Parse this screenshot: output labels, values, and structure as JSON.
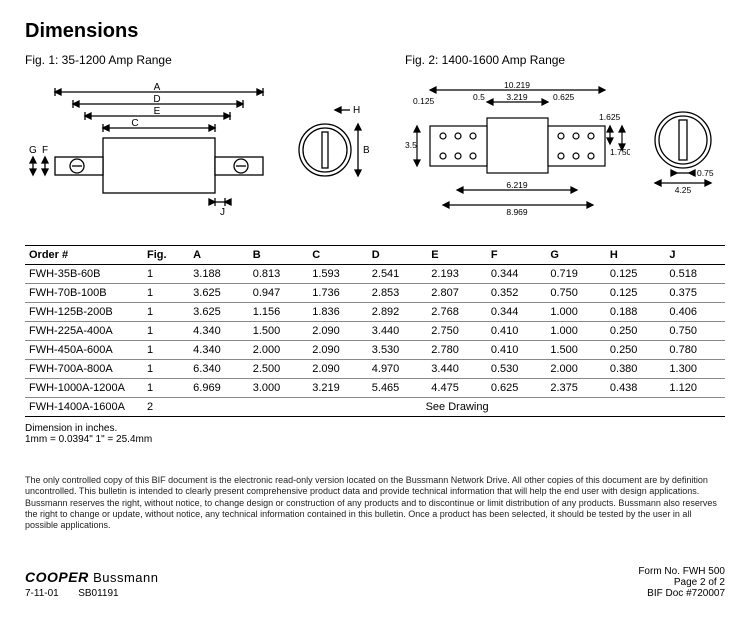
{
  "title": "Dimensions",
  "fig1_caption": "Fig. 1: 35-1200 Amp Range",
  "fig2_caption": "Fig. 2: 1400-1600 Amp Range",
  "fig1_labels": {
    "A": "A",
    "B": "B",
    "C": "C",
    "D": "D",
    "E": "E",
    "F": "F",
    "G": "G",
    "H": "H",
    "J": "J"
  },
  "fig2_labels": {
    "w_total": "10.219",
    "w_center": "3.219",
    "w_pad": "0.5",
    "w_edge": "0.125",
    "w_gap": "0.625",
    "h": "3.5",
    "tab_h": "1.625",
    "tab_h2": "1.750",
    "bot1": "6.219",
    "bot2": "8.969",
    "circ_w": "4.25",
    "circ_slot": "0.75"
  },
  "table": {
    "headers": [
      "Order #",
      "Fig.",
      "A",
      "B",
      "C",
      "D",
      "E",
      "F",
      "G",
      "H",
      "J"
    ],
    "rows": [
      [
        "FWH-35B-60B",
        "1",
        "3.188",
        "0.813",
        "1.593",
        "2.541",
        "2.193",
        "0.344",
        "0.719",
        "0.125",
        "0.518"
      ],
      [
        "FWH-70B-100B",
        "1",
        "3.625",
        "0.947",
        "1.736",
        "2.853",
        "2.807",
        "0.352",
        "0.750",
        "0.125",
        "0.375"
      ],
      [
        "FWH-125B-200B",
        "1",
        "3.625",
        "1.156",
        "1.836",
        "2.892",
        "2.768",
        "0.344",
        "1.000",
        "0.188",
        "0.406"
      ],
      [
        "FWH-225A-400A",
        "1",
        "4.340",
        "1.500",
        "2.090",
        "3.440",
        "2.750",
        "0.410",
        "1.000",
        "0.250",
        "0.750"
      ],
      [
        "FWH-450A-600A",
        "1",
        "4.340",
        "2.000",
        "2.090",
        "3.530",
        "2.780",
        "0.410",
        "1.500",
        "0.250",
        "0.780"
      ],
      [
        "FWH-700A-800A",
        "1",
        "6.340",
        "2.500",
        "2.090",
        "4.970",
        "3.440",
        "0.530",
        "2.000",
        "0.380",
        "1.300"
      ],
      [
        "FWH-1000A-1200A",
        "1",
        "6.969",
        "3.000",
        "3.219",
        "5.465",
        "4.475",
        "0.625",
        "2.375",
        "0.438",
        "1.120"
      ]
    ],
    "last_row_order": "FWH-1400A-1600A",
    "last_row_fig": "2",
    "see_drawing": "See Drawing"
  },
  "dim_note_1": "Dimension in inches.",
  "dim_note_2": "1mm = 0.0394\"      1\" = 25.4mm",
  "disclaimer": "The only controlled copy of this BIF document is the electronic read-only version located on the Bussmann Network Drive. All other copies of this document are by definition uncontrolled. This bulletin is intended to clearly present comprehensive product data and provide technical information that will help the end user with design applications. Bussmann reserves the right, without notice, to change design or construction of any products and to discontinue or limit distribution of any products. Bussmann also reserves the right to change or update, without notice, any technical information contained in this bulletin. Once a product has been selected, it should be tested by the user in all possible applications.",
  "footer": {
    "brand": "COOPER",
    "brand_suffix": "Bussmann",
    "date": "7-11-01",
    "code": "SB01191",
    "form": "Form No. FWH 500",
    "page": "Page 2 of 2",
    "doc": "BIF Doc #720007"
  }
}
